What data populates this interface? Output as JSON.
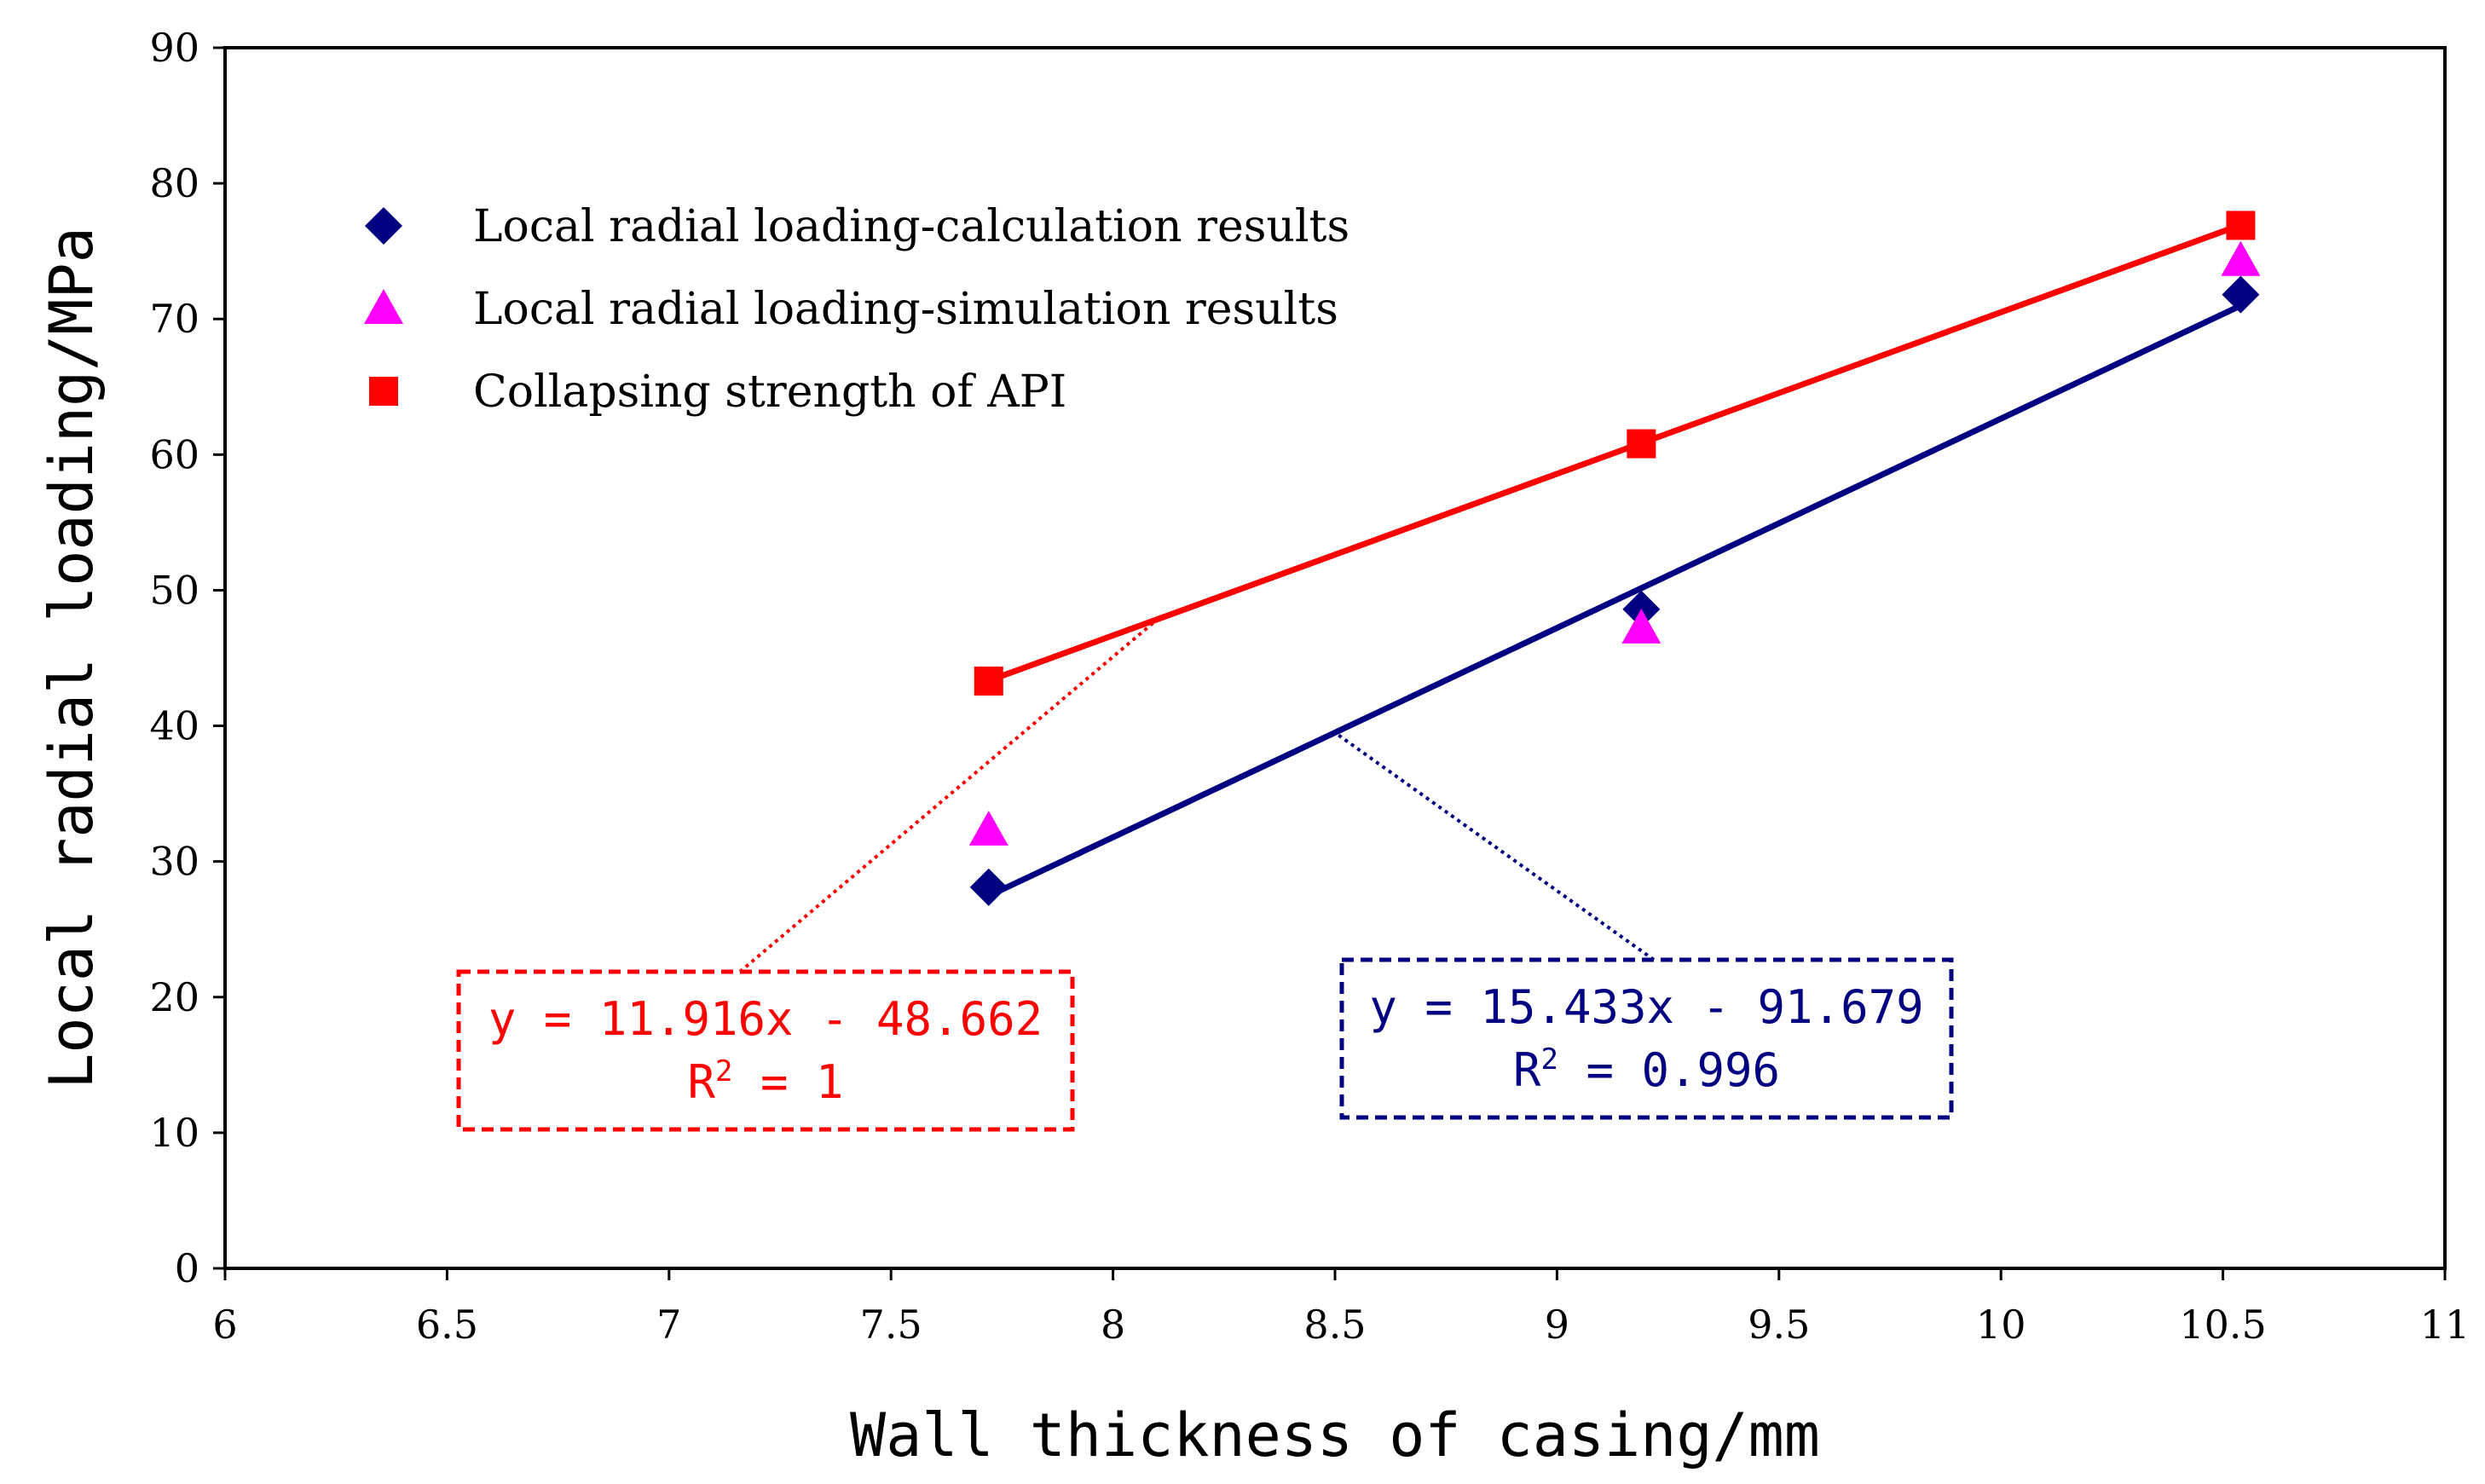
{
  "chart_data": {
    "type": "scatter",
    "title": "",
    "xlabel": "Wall thickness of casing/mm",
    "ylabel": "Local radial loading/MPa",
    "xlim": [
      6,
      11
    ],
    "ylim": [
      0,
      90
    ],
    "xticks": [
      6,
      6.5,
      7,
      7.5,
      8,
      8.5,
      9,
      9.5,
      10,
      10.5,
      11
    ],
    "xtick_labels": [
      "6",
      "6.5",
      "7",
      "7.5",
      "8",
      "8.5",
      "9",
      "9.5",
      "10",
      "10.5",
      "11"
    ],
    "yticks": [
      0,
      10,
      20,
      30,
      40,
      50,
      60,
      70,
      80,
      90
    ],
    "ytick_labels": [
      "0",
      "10",
      "20",
      "30",
      "40",
      "50",
      "60",
      "70",
      "80",
      "90"
    ],
    "grid": false,
    "legend_position": "top-left",
    "series": [
      {
        "name": "Local radial loading-calculation results",
        "marker": "diamond",
        "color": "#000080",
        "x": [
          7.72,
          9.19,
          10.54
        ],
        "y": [
          28.1,
          48.6,
          71.8
        ]
      },
      {
        "name": "Local radial loading-simulation results",
        "marker": "triangle",
        "color": "#ff00ff",
        "x": [
          7.72,
          9.19,
          10.54
        ],
        "y": [
          32.3,
          47.2,
          74.3
        ]
      },
      {
        "name": "Collapsing strength of API",
        "marker": "square",
        "color": "#ff0000",
        "x": [
          7.72,
          9.19,
          10.54
        ],
        "y": [
          43.3,
          60.8,
          76.9
        ]
      }
    ],
    "trendlines": [
      {
        "series": "Collapsing strength of API",
        "color": "#ff0000",
        "slope": 11.916,
        "intercept": -48.662,
        "x_range": [
          7.72,
          10.54
        ],
        "equation": "y = 11.916x - 48.662",
        "r2_prefix": "R",
        "r2_sup": "2",
        "r2_suffix": " = 1",
        "box_position": "lower-left"
      },
      {
        "series": "Local radial loading-calculation results",
        "color": "#000080",
        "slope": 15.433,
        "intercept": -91.679,
        "x_range": [
          7.72,
          10.54
        ],
        "equation": "y = 15.433x - 91.679",
        "r2_prefix": "R",
        "r2_sup": "2",
        "r2_suffix": " = 0.996",
        "box_position": "lower-center"
      }
    ]
  }
}
